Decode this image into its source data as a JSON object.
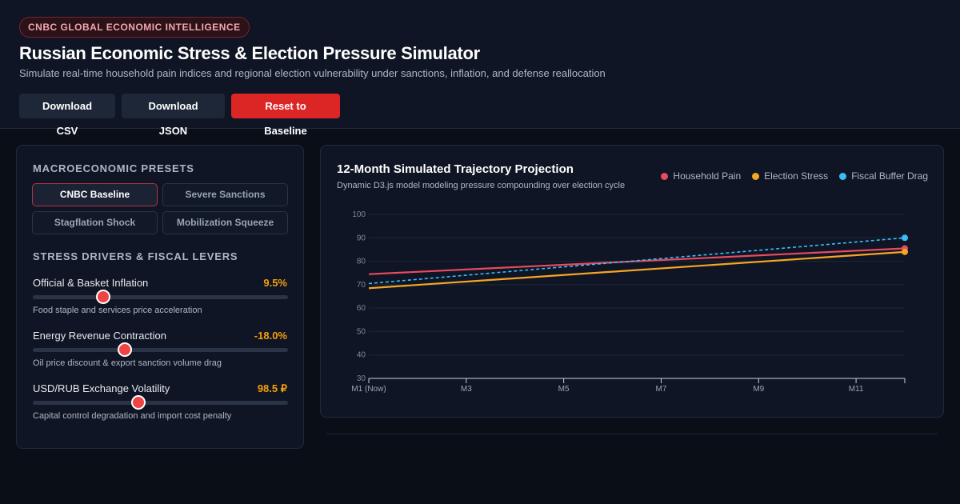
{
  "header": {
    "badge": "CNBC GLOBAL ECONOMIC INTELLIGENCE",
    "title": "Russian Economic Stress & Election Pressure Simulator",
    "subtitle": "Simulate real-time household pain indices and regional election vulnerability under sanctions, inflation, and defense reallocation",
    "buttons": {
      "csv": "Download CSV",
      "json": "Download JSON",
      "reset": "Reset to Baseline"
    }
  },
  "left": {
    "presets_title": "MACROECONOMIC PRESETS",
    "presets": [
      "CNBC Baseline",
      "Severe Sanctions",
      "Stagflation Shock",
      "Mobilization Squeeze"
    ],
    "active_preset": "CNBC Baseline",
    "drivers_title": "STRESS DRIVERS & FISCAL LEVERS",
    "sliders": [
      {
        "label": "Official & Basket Inflation",
        "value": "9.5%",
        "desc": "Food staple and services price acceleration",
        "fraction": 0.275
      },
      {
        "label": "Energy Revenue Contraction",
        "value": "-18.0%",
        "desc": "Oil price discount & export sanction volume drag",
        "fraction": 0.36
      },
      {
        "label": "USD/RUB Exchange Volatility",
        "value": "98.5 ₽",
        "desc": "Capital control degradation and import cost penalty",
        "fraction": 0.415
      }
    ]
  },
  "chart": {
    "title": "12-Month Simulated Trajectory Projection",
    "subtitle": "Dynamic D3.js model modeling pressure compounding over election cycle",
    "colors": {
      "household": "#e84a5f",
      "election": "#f5a623",
      "fiscal": "#38bdf8"
    }
  },
  "chart_data": {
    "type": "line",
    "x": [
      1,
      12
    ],
    "xticks": [
      {
        "value": 1,
        "label": "M1 (Now)"
      },
      {
        "value": 3,
        "label": "M3"
      },
      {
        "value": 5,
        "label": "M5"
      },
      {
        "value": 7,
        "label": "M7"
      },
      {
        "value": 9,
        "label": "M9"
      },
      {
        "value": 11,
        "label": "M11"
      }
    ],
    "xlim": [
      1,
      12
    ],
    "ylim": [
      30,
      100
    ],
    "yticks": [
      100,
      90,
      80,
      70,
      60,
      50,
      40,
      30
    ],
    "grid": true,
    "legend_placement": "top-right",
    "series": [
      {
        "name": "Household Pain",
        "color": "#e84a5f",
        "style": "solid",
        "values": [
          74.5,
          85.5
        ]
      },
      {
        "name": "Election Stress",
        "color": "#f5a623",
        "style": "solid",
        "values": [
          68.5,
          84.0
        ]
      },
      {
        "name": "Fiscal Buffer Drag",
        "color": "#38bdf8",
        "style": "dashed",
        "values": [
          70.5,
          90.0
        ]
      }
    ]
  }
}
